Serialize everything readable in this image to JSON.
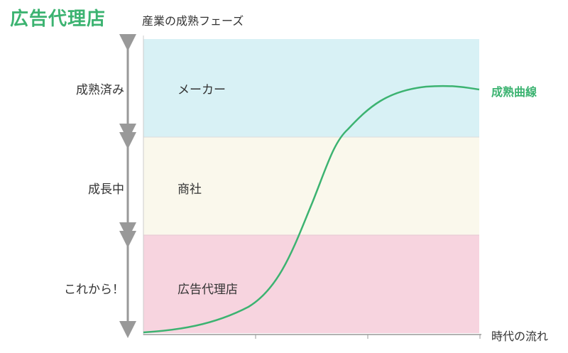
{
  "title": "広告代理店",
  "y_axis_label": "産業の成熟フェーズ",
  "x_axis_label": "時代の流れ",
  "phases": [
    {
      "label": "成熟済み"
    },
    {
      "label": "成長中"
    },
    {
      "label": "これから！"
    }
  ],
  "bands": [
    {
      "label": "メーカー",
      "color": "#d8f1f5"
    },
    {
      "label": "商社",
      "color": "#faf8ec"
    },
    {
      "label": "広告代理店",
      "color": "#f7d4df"
    }
  ],
  "curve": {
    "label": "成熟曲線",
    "color": "#3cb371"
  },
  "colors": {
    "accent": "#3cb371",
    "arrow": "#999999",
    "grid": "#cccccc"
  }
}
